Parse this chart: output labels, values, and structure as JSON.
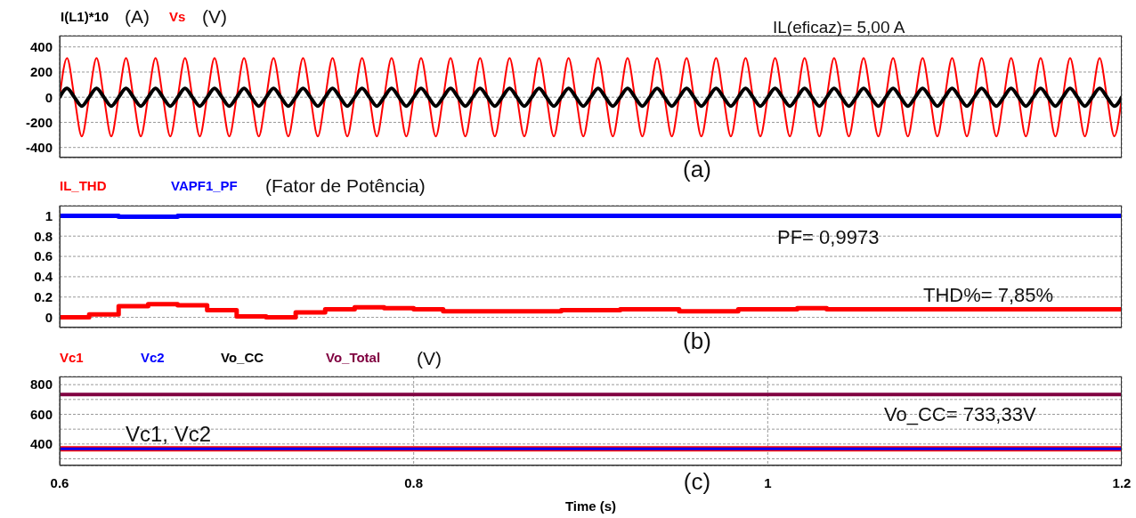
{
  "chart_data": [
    {
      "type": "line",
      "xlim": [
        0.6,
        1.2
      ],
      "xticks": [
        0.6,
        0.8,
        1,
        1.2
      ],
      "ylim": [
        -480,
        490
      ],
      "yticks": [
        400,
        200,
        0,
        -200,
        -400
      ],
      "grid": true,
      "legend": "top left",
      "tick_labels": "y",
      "annotations": [
        "(A)",
        "(V)",
        "IL(eficaz)= 5,00 A",
        "(a)"
      ],
      "x": [
        0.6,
        0.60417,
        0.60833,
        0.6125,
        0.61667,
        0.62083,
        0.625,
        0.62917,
        0.63333,
        0.6375,
        0.64167,
        0.64583,
        0.65,
        0.65417,
        0.65833,
        0.6625,
        0.66667,
        0.67083,
        0.675,
        0.67917,
        0.68333,
        0.6875,
        0.69167,
        0.69583,
        0.7,
        0.70417,
        0.70833,
        0.7125,
        0.71667,
        0.72083,
        0.725,
        0.72917,
        0.73333,
        0.7375,
        0.74167,
        0.74583,
        0.75,
        0.75417,
        0.75833,
        0.7625,
        0.76667,
        0.77083,
        0.775,
        0.77917,
        0.78333,
        0.7875,
        0.79167,
        0.79583,
        0.8,
        0.80417,
        0.80833,
        0.8125,
        0.81667,
        0.82083,
        0.825,
        0.82917,
        0.83333,
        0.8375,
        0.84167,
        0.84583,
        0.85,
        0.85417,
        0.85833,
        0.8625,
        0.86667,
        0.87083,
        0.875,
        0.87917,
        0.88333,
        0.8875,
        0.89167,
        0.89583,
        0.9,
        0.90417,
        0.90833,
        0.9125,
        0.91667,
        0.92083,
        0.925,
        0.92917,
        0.93333,
        0.9375,
        0.94167,
        0.94583,
        0.95,
        0.95417,
        0.95833,
        0.9625,
        0.96667,
        0.97083,
        0.975,
        0.97917,
        0.98333,
        0.9875,
        0.99167,
        0.99583,
        1,
        1.00417,
        1.00833,
        1.0125,
        1.01667,
        1.02083,
        1.025,
        1.02917,
        1.03333,
        1.0375,
        1.04167,
        1.04583,
        1.05,
        1.05417,
        1.05833,
        1.0625,
        1.06667,
        1.07083,
        1.075,
        1.07917,
        1.08333,
        1.0875,
        1.09167,
        1.09583,
        1.1,
        1.10417,
        1.10833,
        1.1125,
        1.11667,
        1.12083,
        1.125,
        1.12917,
        1.13333,
        1.1375,
        1.14167,
        1.14583,
        1.15,
        1.15417,
        1.15833,
        1.1625,
        1.16667,
        1.17083,
        1.175,
        1.17917,
        1.18333,
        1.1875,
        1.19167,
        1.19583,
        1.2
      ],
      "series": [
        {
          "name": "Vs",
          "color": "#ff0000",
          "values": [
            0,
            311,
            0,
            -311,
            0,
            311,
            0,
            -311,
            0,
            311,
            0,
            -311,
            0,
            311,
            0,
            -311,
            0,
            311,
            0,
            -311,
            0,
            311,
            0,
            -311,
            0,
            311,
            0,
            -311,
            0,
            311,
            0,
            -311,
            0,
            311,
            0,
            -311,
            0,
            311,
            0,
            -311,
            0,
            311,
            0,
            -311,
            0,
            311,
            0,
            -311,
            0,
            311,
            0,
            -311,
            0,
            311,
            0,
            -311,
            0,
            311,
            0,
            -311,
            0,
            311,
            0,
            -311,
            0,
            311,
            0,
            -311,
            0,
            311,
            0,
            -311,
            0,
            311,
            0,
            -311,
            0,
            311,
            0,
            -311,
            0,
            311,
            0,
            -311,
            0,
            311,
            0,
            -311,
            0,
            311,
            0,
            -311,
            0,
            311,
            0,
            -311,
            0,
            311,
            0,
            -311,
            0,
            311,
            0,
            -311,
            0,
            311,
            0,
            -311,
            0,
            311,
            0,
            -311,
            0,
            311,
            0,
            -311,
            0,
            311,
            0,
            -311,
            0,
            311,
            0,
            -311,
            0,
            311,
            0,
            -311,
            0,
            311,
            0,
            -311,
            0,
            311,
            0,
            -311,
            0,
            311,
            0,
            -311,
            0,
            311,
            0,
            -311,
            0
          ]
        },
        {
          "name": "I(L1)*10",
          "color": "#000000",
          "values": [
            0,
            71,
            0,
            -71,
            0,
            71,
            0,
            -71,
            0,
            71,
            0,
            -71,
            0,
            71,
            0,
            -71,
            0,
            71,
            0,
            -71,
            0,
            71,
            0,
            -71,
            0,
            71,
            0,
            -71,
            0,
            71,
            0,
            -71,
            0,
            71,
            0,
            -71,
            0,
            71,
            0,
            -71,
            0,
            71,
            0,
            -71,
            0,
            71,
            0,
            -71,
            0,
            71,
            0,
            -71,
            0,
            71,
            0,
            -71,
            0,
            71,
            0,
            -71,
            0,
            71,
            0,
            -71,
            0,
            71,
            0,
            -71,
            0,
            71,
            0,
            -71,
            0,
            71,
            0,
            -71,
            0,
            71,
            0,
            -71,
            0,
            71,
            0,
            -71,
            0,
            71,
            0,
            -71,
            0,
            71,
            0,
            -71,
            0,
            71,
            0,
            -71,
            0,
            71,
            0,
            -71,
            0,
            71,
            0,
            -71,
            0,
            71,
            0,
            -71,
            0,
            71,
            0,
            -71,
            0,
            71,
            0,
            -71,
            0,
            71,
            0,
            -71,
            0,
            71,
            0,
            -71,
            0,
            71,
            0,
            -71,
            0,
            71,
            0,
            -71,
            0,
            71,
            0,
            -71,
            0,
            71,
            0,
            -71,
            0,
            71,
            0,
            -71,
            0
          ]
        }
      ]
    },
    {
      "type": "step",
      "xlim": [
        0.6,
        1.2
      ],
      "xticks": [
        0.6,
        0.8,
        1,
        1.2
      ],
      "ylim": [
        -0.1,
        1.1
      ],
      "yticks": [
        1,
        0.8,
        0.6,
        0.4,
        0.2,
        0
      ],
      "grid": true,
      "legend": "top left",
      "tick_labels": "y",
      "annotations": [
        "(Fator de Potência)",
        "PF= 0,9973",
        "THD%= 7,85%",
        "(b)"
      ],
      "x": [
        0.6,
        0.61667,
        0.63333,
        0.65,
        0.66667,
        0.68333,
        0.7,
        0.71667,
        0.73333,
        0.75,
        0.76667,
        0.78333,
        0.8,
        0.81667,
        0.83333,
        0.85,
        0.86667,
        0.88333,
        0.9,
        0.91667,
        0.93333,
        0.95,
        0.96667,
        0.98333,
        1,
        1.01667,
        1.03333,
        1.05,
        1.06667,
        1.08333,
        1.1,
        1.11667,
        1.13333,
        1.15,
        1.16667,
        1.18333,
        1.2
      ],
      "series": [
        {
          "name": "IL_THD",
          "color": "#ff0000",
          "values": [
            0,
            0.03,
            0.11,
            0.13,
            0.12,
            0.07,
            0.01,
            0,
            0.05,
            0.08,
            0.1,
            0.09,
            0.08,
            0.06,
            0.06,
            0.06,
            0.06,
            0.07,
            0.07,
            0.08,
            0.08,
            0.06,
            0.06,
            0.08,
            0.08,
            0.09,
            0.08,
            0.08,
            0.08,
            0.08,
            0.08,
            0.08,
            0.08,
            0.08,
            0.08,
            0.08,
            0.08
          ]
        },
        {
          "name": "VAPF1_PF",
          "color": "#0000ff",
          "values": [
            1,
            1,
            0.99,
            0.99,
            1,
            1,
            1,
            1,
            1,
            1,
            1,
            1,
            1,
            1,
            1,
            1,
            1,
            1,
            1,
            1,
            1,
            1,
            1,
            1,
            1,
            1,
            1,
            1,
            1,
            1,
            1,
            1,
            1,
            1,
            1,
            1,
            1
          ]
        }
      ]
    },
    {
      "type": "line",
      "xlim": [
        0.6,
        1.2
      ],
      "xticks": [
        0.6,
        0.8,
        1,
        1.2
      ],
      "ylim": [
        255,
        855
      ],
      "yticks": [
        800,
        {
          "value": 700,
          "label": null
        },
        600,
        {
          "value": 500,
          "label": null
        },
        400,
        {
          "value": 300,
          "label": null
        }
      ],
      "grid": true,
      "legend": "top left",
      "xlabel": "Time (s)",
      "annotations": [
        "(V)",
        "Vc1, Vc2",
        "Vo_CC= 733,33V",
        "(c)"
      ],
      "x": [
        0.6,
        1.2
      ],
      "series": [
        {
          "name": "Vc1",
          "color": "#ff0000",
          "values": [
            367,
            367
          ]
        },
        {
          "name": "Vc2",
          "color": "#0000ff",
          "values": [
            367,
            367
          ]
        },
        {
          "name": "Vo_CC",
          "color": "#000000",
          "values": [
            null,
            null
          ]
        },
        {
          "name": "Vo_Total",
          "color": "#800040",
          "values": [
            733,
            733
          ]
        }
      ]
    }
  ]
}
